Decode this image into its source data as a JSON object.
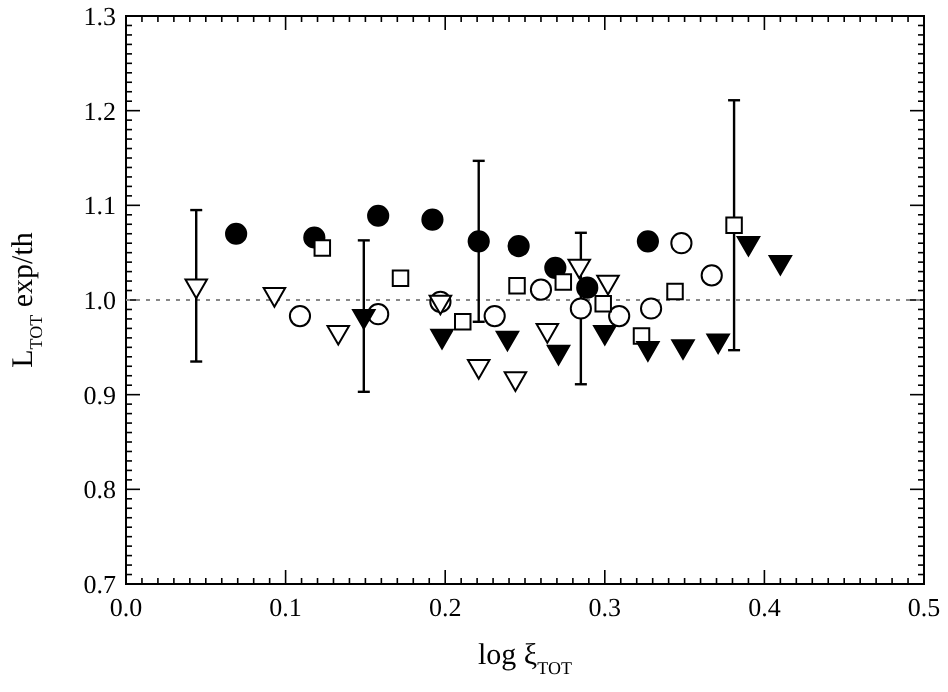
{
  "chart_data": {
    "type": "scatter",
    "xlabel": "log ξ$_{TOT}$",
    "ylabel": "L$_{TOT}$ exp/th",
    "xlim": [
      0,
      0.5
    ],
    "xticks": [
      {
        "value": 0,
        "label": "0.0"
      },
      0.1,
      0.2,
      0.3,
      0.4,
      0.5
    ],
    "ylim": [
      0.7,
      1.3
    ],
    "yticks": [
      0.7,
      0.8,
      0.9,
      {
        "value": 1,
        "label": "1.0"
      },
      1.1,
      1.2,
      1.3
    ],
    "grid": false,
    "ref_lines": [
      {
        "axis": "y",
        "value": 1,
        "line_style": "dotted",
        "color": "#888888"
      }
    ],
    "series": [
      {
        "marker": "circle",
        "color": "#000000",
        "x": [
          0.069,
          0.118,
          0.158,
          0.192,
          0.221,
          0.246,
          0.269,
          0.289,
          0.327
        ],
        "values": [
          1.07,
          1.066,
          1.089,
          1.085,
          1.062,
          1.057,
          1.034,
          1.013,
          1.062
        ],
        "errors": [
          null,
          null,
          null,
          null,
          0.085,
          null,
          null,
          null,
          null
        ]
      },
      {
        "marker": "circle",
        "color": "#ffffff",
        "x": [
          0.109,
          0.158,
          0.197,
          0.231,
          0.26,
          0.285,
          0.309,
          0.329,
          0.348,
          0.367
        ],
        "values": [
          0.983,
          0.985,
          0.998,
          0.983,
          1.011,
          0.991,
          0.983,
          0.991,
          1.06,
          1.026
        ],
        "errors": [
          null,
          null,
          null,
          null,
          null,
          0.08,
          null,
          null,
          null,
          null
        ]
      },
      {
        "marker": "square",
        "color": "#ffffff",
        "x": [
          0.123,
          0.172,
          0.211,
          0.245,
          0.274,
          0.299,
          0.323,
          0.344,
          0.381
        ],
        "values": [
          1.055,
          1.023,
          0.977,
          1.015,
          1.019,
          0.996,
          0.962,
          1.009,
          1.079
        ],
        "errors": [
          null,
          null,
          null,
          null,
          null,
          null,
          null,
          null,
          0.132
        ]
      },
      {
        "marker": "triangle",
        "color": "#ffffff",
        "x": [
          0.044,
          0.093,
          0.133,
          0.197,
          0.221,
          0.244,
          0.264,
          0.284,
          0.302
        ],
        "values": [
          1.015,
          1.006,
          0.966,
          0.998,
          0.93,
          0.917,
          0.968,
          1.036,
          1.019
        ],
        "errors": [
          0.08,
          null,
          null,
          null,
          null,
          null,
          null,
          null,
          null
        ]
      },
      {
        "marker": "triangle",
        "color": "#000000",
        "x": [
          0.149,
          0.198,
          0.239,
          0.271,
          0.3,
          0.327,
          0.349,
          0.371,
          0.39,
          0.41
        ],
        "values": [
          0.983,
          0.962,
          0.96,
          0.945,
          0.966,
          0.949,
          0.951,
          0.957,
          1.06,
          1.04
        ],
        "errors": [
          0.08,
          null,
          null,
          null,
          null,
          null,
          null,
          null,
          null,
          null
        ]
      }
    ]
  }
}
